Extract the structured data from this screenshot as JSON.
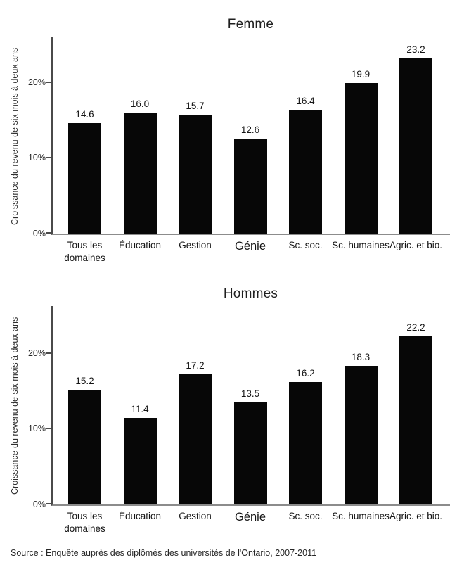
{
  "page": {
    "background": "#ffffff"
  },
  "source_note": "Source : Enquête auprès des diplômés des universités de l'Ontario, 2007-2011",
  "chart_data": [
    {
      "type": "bar",
      "title": "Femme",
      "ylabel": "Croissance du revenu de six mois à deux ans",
      "categories": [
        "Tous les\ndomaines",
        "Éducation",
        "Gestion",
        "Génie",
        "Sc. soc.",
        "Sc. humaines",
        "Agric. et bio."
      ],
      "values": [
        14.6,
        16.0,
        15.7,
        12.6,
        16.4,
        19.9,
        23.2
      ],
      "value_labels": [
        "14.6",
        "16.0",
        "15.7",
        "12.6",
        "16.4",
        "19.9",
        "23.2"
      ],
      "yticks": [
        {
          "value": 0,
          "label": "0%"
        },
        {
          "value": 10,
          "label": "10%"
        },
        {
          "value": 20,
          "label": "20%"
        }
      ],
      "ylim": [
        0,
        26
      ],
      "bar_color": "#070707",
      "grid": false,
      "legend": null
    },
    {
      "type": "bar",
      "title": "Hommes",
      "ylabel": "Croissance du revenu de six mois à deux ans",
      "categories": [
        "Tous les\ndomaines",
        "Éducation",
        "Gestion",
        "Génie",
        "Sc. soc.",
        "Sc. humaines",
        "Agric. et bio."
      ],
      "values": [
        15.2,
        11.4,
        17.2,
        13.5,
        16.2,
        18.3,
        22.2
      ],
      "value_labels": [
        "15.2",
        "11.4",
        "17.2",
        "13.5",
        "16.2",
        "18.3",
        "22.2"
      ],
      "yticks": [
        {
          "value": 0,
          "label": "0%"
        },
        {
          "value": 10,
          "label": "10%"
        },
        {
          "value": 20,
          "label": "20%"
        }
      ],
      "ylim": [
        0,
        26
      ],
      "bar_color": "#070707",
      "grid": false,
      "legend": null
    }
  ]
}
